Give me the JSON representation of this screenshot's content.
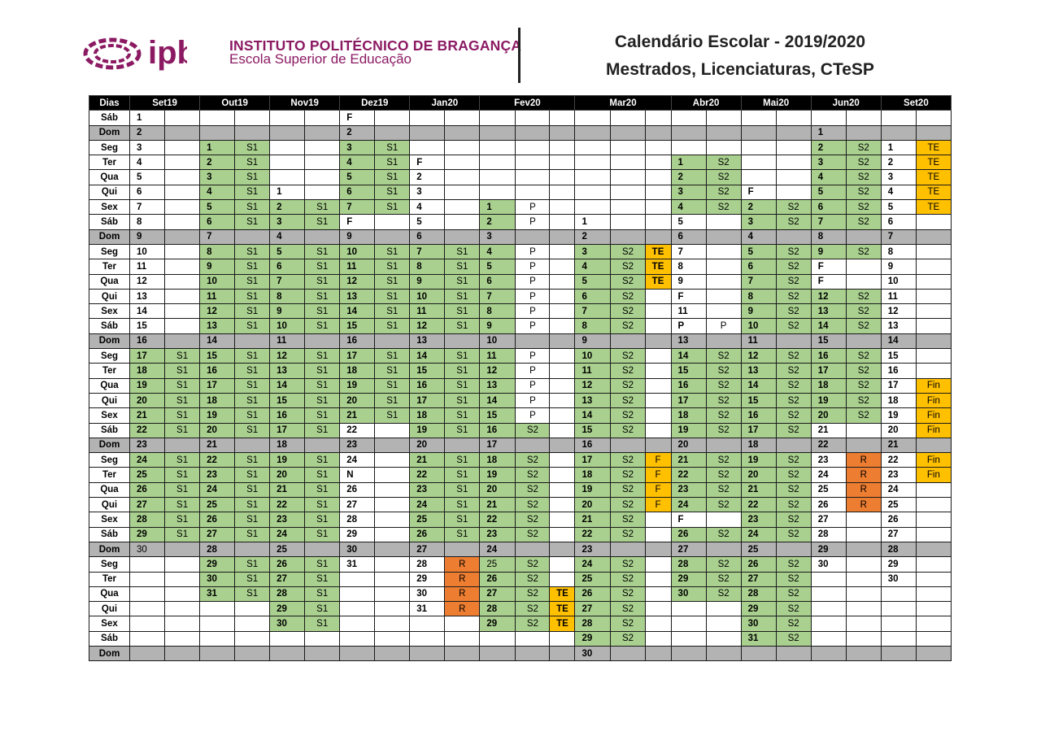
{
  "header": {
    "institution": "INSTITUTO POLITÉCNICO DE BRAGANÇA",
    "school": "Escola Superior de Educação",
    "logo_text": "ipb",
    "title_line1": "Calendário Escolar - 2019/2020",
    "title_line2": "Mestrados, Licenciaturas, CTeSP"
  },
  "colors": {
    "semester": "#a9d08e",
    "special": "#ffc000",
    "resit": "#ed7d31",
    "weekend": "#b3b3b3",
    "brand": "#8b1a63"
  },
  "calendar": {
    "columns": [
      "Dias",
      "Set19",
      "Out19",
      "Nov19",
      "Dez19",
      "Jan20",
      "Fev20",
      "Mar20",
      "Abr20",
      "Mai20",
      "Jun20",
      "Set20"
    ],
    "months": [
      {
        "off": 0,
        "last": 30,
        "tags": {
          "16-30": "S1"
        }
      },
      {
        "off": 2,
        "last": 31,
        "tags": {
          "1-31": "S1"
        }
      },
      {
        "off": 5,
        "last": 30,
        "tags": {
          "2-30": "S1"
        }
      },
      {
        "off": 0,
        "last": 31,
        "tags": {
          "2-21": "S1"
        },
        "labels": {
          "1": "F",
          "8": "F",
          "25": "N"
        }
      },
      {
        "off": 3,
        "last": 31,
        "tags": {
          "6-26": "S1",
          "27-31": "R"
        },
        "labels": {
          "1": "F"
        }
      },
      {
        "off": 6,
        "last": 29,
        "tags": {
          "1-15": "P",
          "16-29": "S2"
        },
        "extra": {
          "27-29": "TE"
        }
      },
      {
        "off": 7,
        "last": 31,
        "tags": {
          "2-31": "S2"
        },
        "extra": {
          "2-5": "TE",
          "16-20": "F"
        }
      },
      {
        "off": 3,
        "last": 30,
        "tags": {
          "1-4": "S2",
          "14-30": "S2"
        },
        "labels": {
          "10": "F",
          "12": "P",
          "25": "F"
        }
      },
      {
        "off": 5,
        "last": 31,
        "tags": {
          "2-31": "S2"
        },
        "labels": {
          "1": "F"
        }
      },
      {
        "off": 1,
        "last": 30,
        "tags": {
          "1-9": "S2",
          "12-20": "S2",
          "22-26": "R"
        },
        "labels": {
          "10": "F",
          "11": "F"
        },
        "plainextra": {
          "17": "S2"
        }
      },
      {
        "off": 2,
        "last": 30,
        "extra": {
          "1-5": "TE",
          "17-23": "Fin"
        }
      }
    ],
    "weekdays": [
      "Sáb",
      "Dom",
      "Seg",
      "Ter",
      "Qua",
      "Qui",
      "Sex"
    ]
  }
}
